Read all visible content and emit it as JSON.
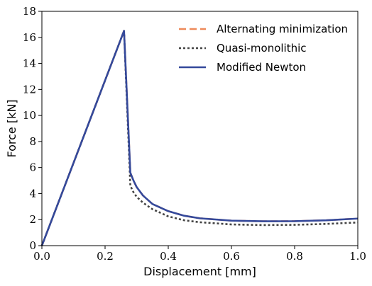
{
  "chart_data": {
    "type": "line",
    "xlabel": "Displacement [mm]",
    "ylabel": "Force [kN]",
    "xlim": [
      0.0,
      1.0
    ],
    "ylim": [
      0,
      18
    ],
    "x_ticks": [
      "0.0",
      "0.2",
      "0.4",
      "0.6",
      "0.8",
      "1.0"
    ],
    "y_ticks": [
      "0",
      "2",
      "4",
      "6",
      "8",
      "10",
      "12",
      "14",
      "16",
      "18"
    ],
    "grid": false,
    "legend_position": "top-right",
    "series": [
      {
        "name": "Alternating minimization",
        "color": "#ee8a5a",
        "style": "dashed",
        "x": [
          0.0,
          0.26,
          0.28,
          0.29,
          0.3,
          0.32,
          0.35,
          0.4,
          0.45,
          0.5,
          0.6,
          0.7,
          0.8,
          0.9,
          1.0
        ],
        "y": [
          0.0,
          16.5,
          5.6,
          5.0,
          4.5,
          3.85,
          3.2,
          2.65,
          2.3,
          2.1,
          1.92,
          1.87,
          1.88,
          1.95,
          2.08
        ]
      },
      {
        "name": "Quasi-monolithic",
        "color": "#444444",
        "style": "dotted",
        "x": [
          0.0,
          0.26,
          0.28,
          0.29,
          0.3,
          0.32,
          0.35,
          0.4,
          0.45,
          0.5,
          0.6,
          0.7,
          0.8,
          0.9,
          1.0
        ],
        "y": [
          0.0,
          16.5,
          4.6,
          4.1,
          3.75,
          3.3,
          2.8,
          2.25,
          1.95,
          1.8,
          1.63,
          1.58,
          1.6,
          1.67,
          1.78
        ]
      },
      {
        "name": "Modified Newton",
        "color": "#34499b",
        "style": "solid",
        "x": [
          0.0,
          0.26,
          0.28,
          0.29,
          0.3,
          0.32,
          0.35,
          0.4,
          0.45,
          0.5,
          0.6,
          0.7,
          0.8,
          0.9,
          1.0
        ],
        "y": [
          0.0,
          16.5,
          5.6,
          5.0,
          4.5,
          3.85,
          3.2,
          2.65,
          2.3,
          2.1,
          1.92,
          1.87,
          1.88,
          1.95,
          2.08
        ]
      }
    ]
  }
}
